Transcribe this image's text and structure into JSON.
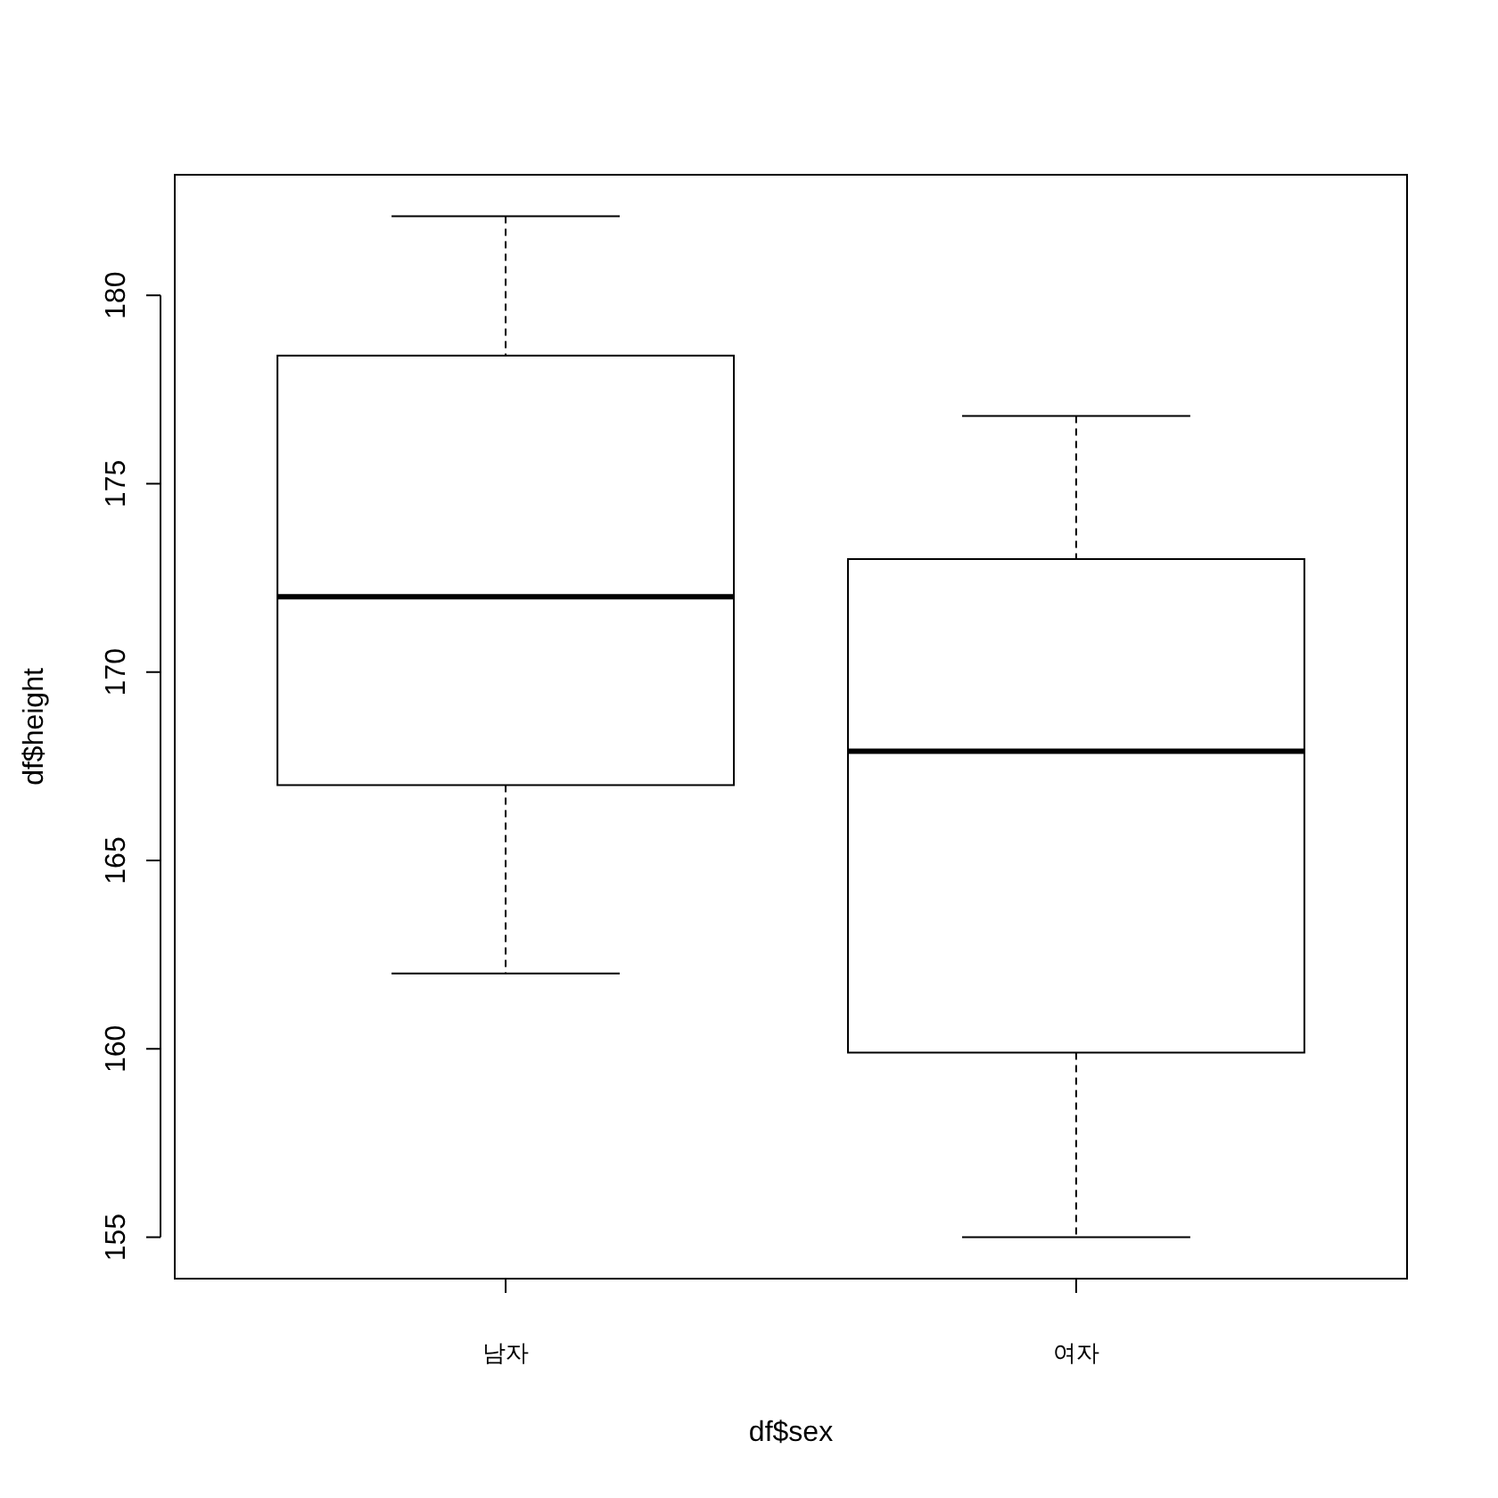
{
  "chart_data": {
    "type": "box",
    "xlabel": "df$sex",
    "ylabel": "df$height",
    "categories": [
      "남자",
      "여자"
    ],
    "boxes": [
      {
        "low": 162.0,
        "q1": 167.0,
        "median": 172.0,
        "q3": 178.4,
        "high": 182.1
      },
      {
        "low": 155.0,
        "q1": 159.9,
        "median": 167.9,
        "q3": 173.0,
        "high": 176.8
      }
    ],
    "ylim": [
      153.9,
      183.2
    ],
    "yticks": [
      155,
      160,
      165,
      170,
      175,
      180
    ]
  }
}
